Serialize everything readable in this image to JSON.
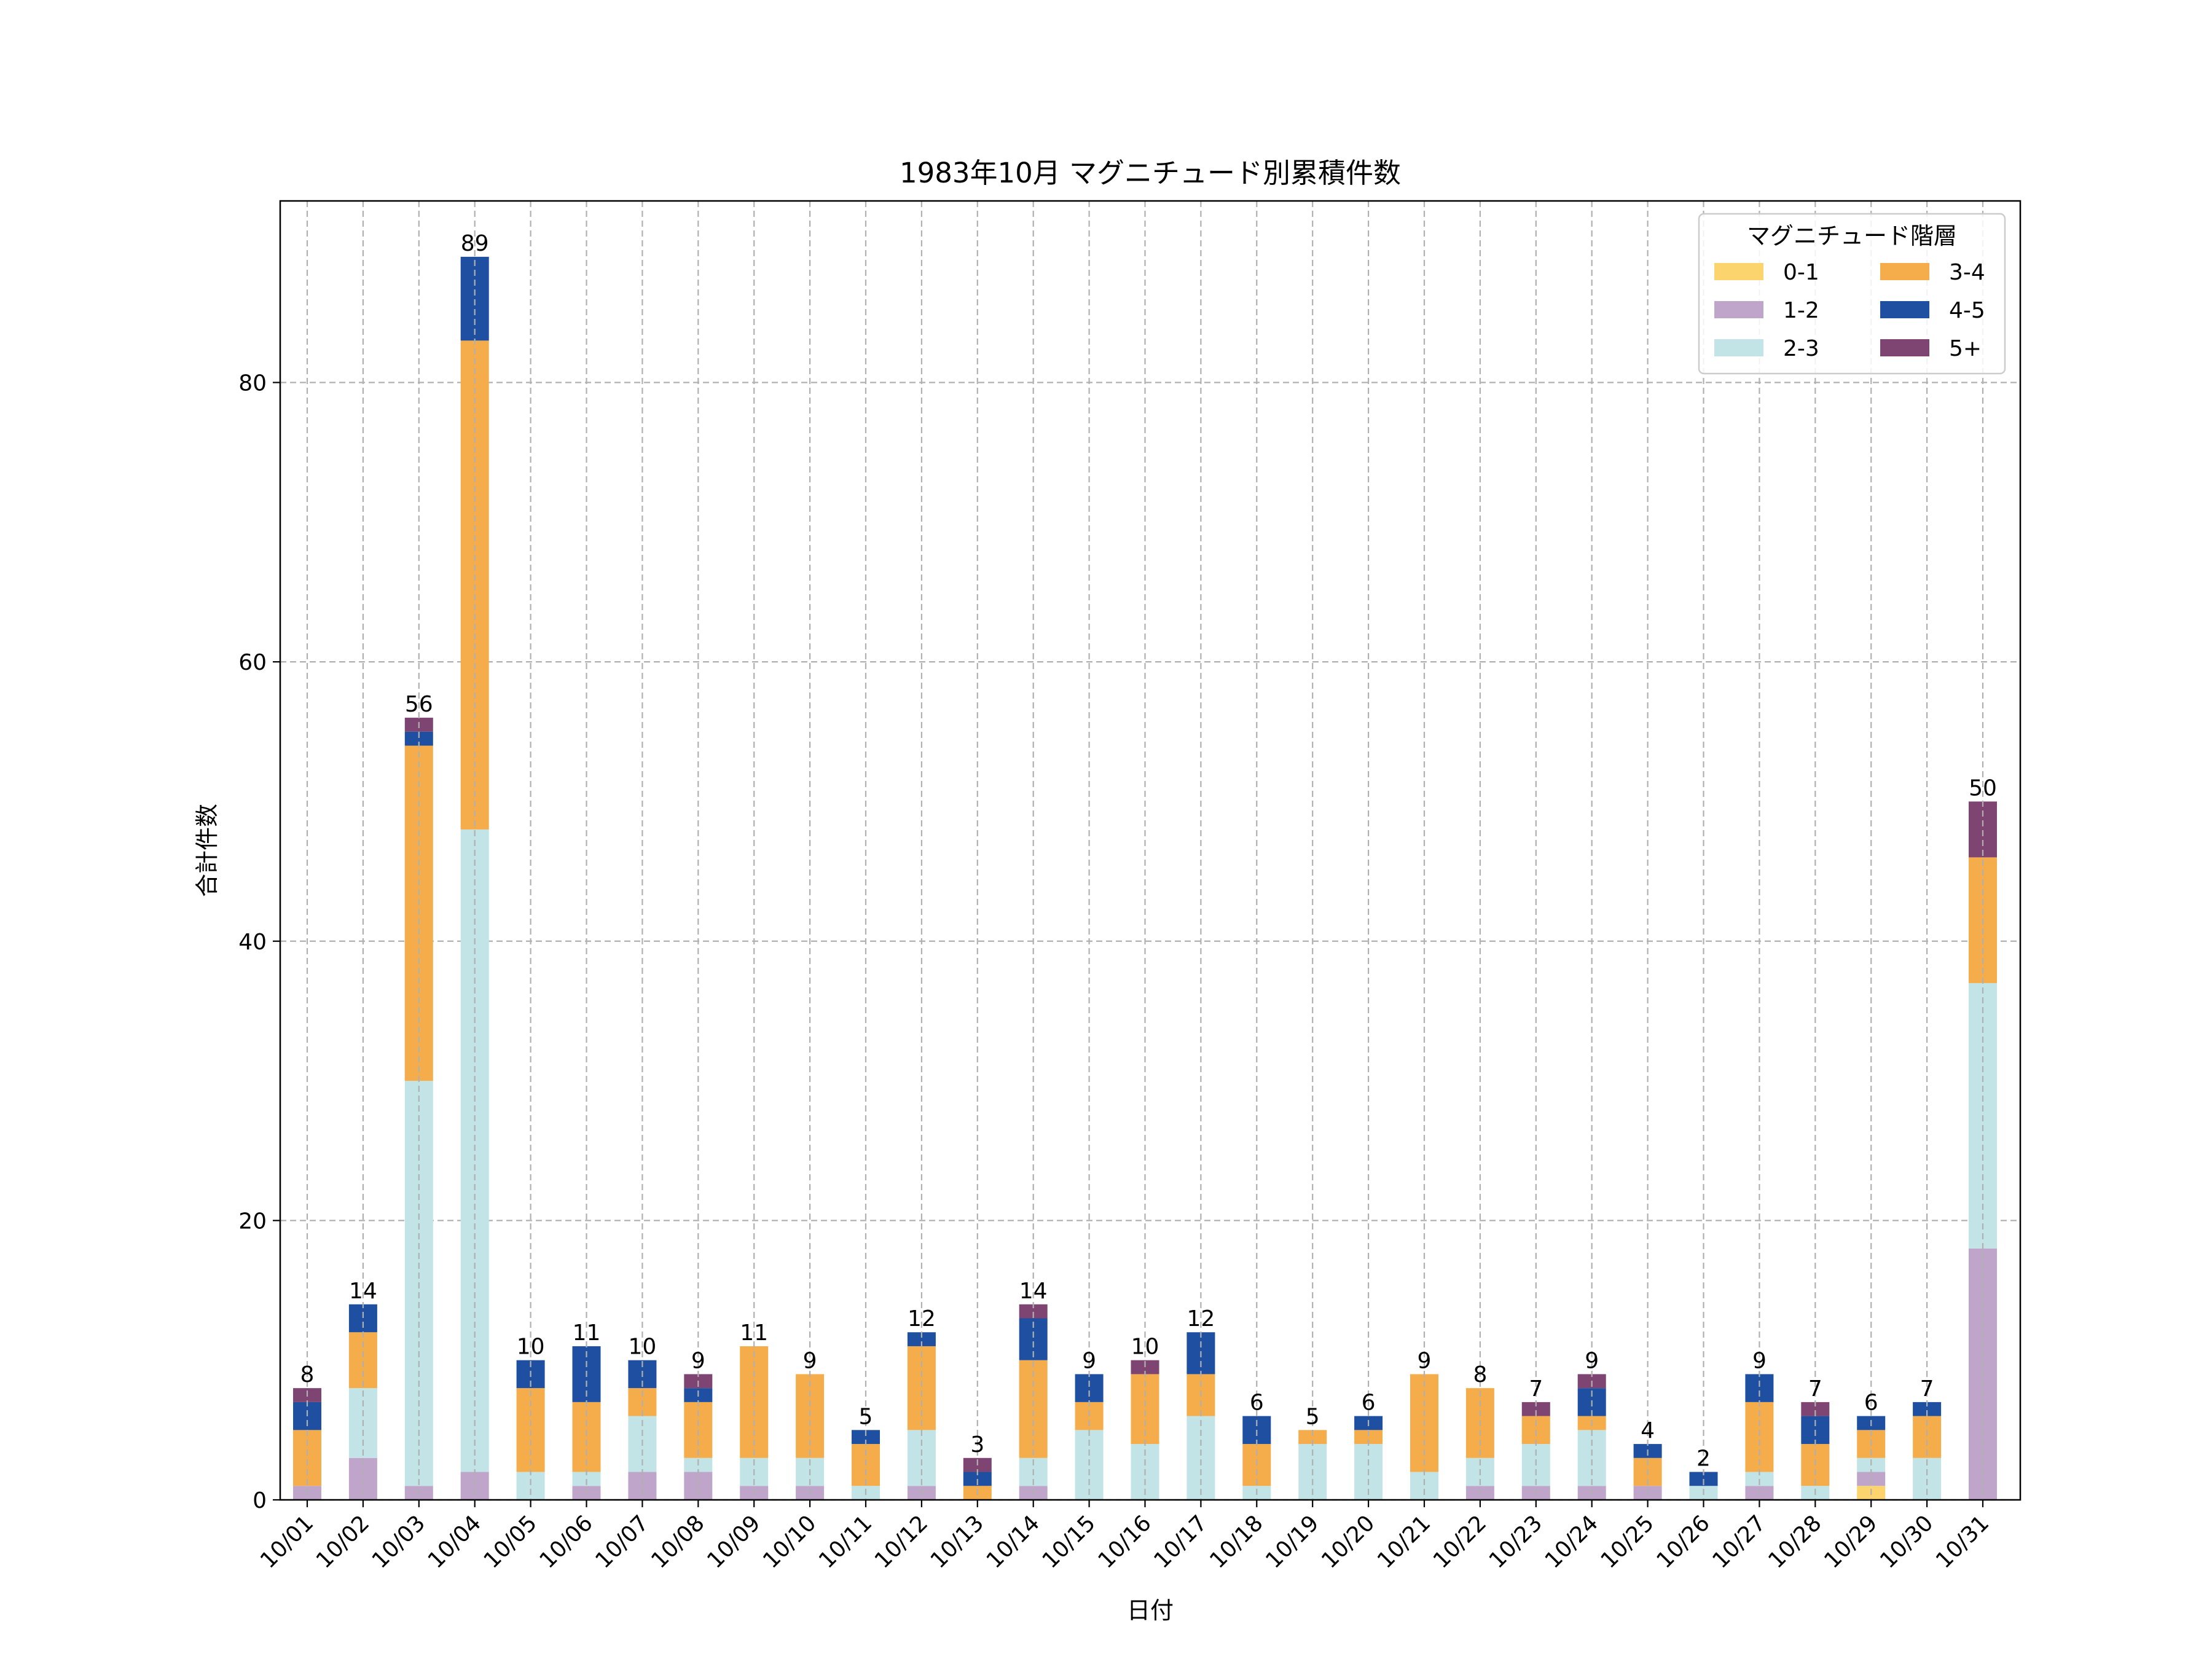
{
  "chart_data": {
    "type": "bar",
    "stacked": true,
    "title": "1983年10月 マグニチュード別累積件数",
    "xlabel": "日付",
    "ylabel": "合計件数",
    "ylim": [
      0,
      93
    ],
    "yticks": [
      0,
      20,
      40,
      60,
      80
    ],
    "grid": true,
    "legend": {
      "title": "マグニチュード階層",
      "position": "top-right",
      "columns": 2
    },
    "categories": [
      "10/01",
      "10/02",
      "10/03",
      "10/04",
      "10/05",
      "10/06",
      "10/07",
      "10/08",
      "10/09",
      "10/10",
      "10/11",
      "10/12",
      "10/13",
      "10/14",
      "10/15",
      "10/16",
      "10/17",
      "10/18",
      "10/19",
      "10/20",
      "10/21",
      "10/22",
      "10/23",
      "10/24",
      "10/25",
      "10/26",
      "10/27",
      "10/28",
      "10/29",
      "10/30",
      "10/31"
    ],
    "totals": [
      8,
      14,
      56,
      89,
      10,
      11,
      10,
      9,
      11,
      9,
      5,
      12,
      3,
      14,
      9,
      10,
      12,
      6,
      5,
      6,
      9,
      8,
      7,
      9,
      4,
      2,
      9,
      7,
      6,
      7,
      50
    ],
    "series": [
      {
        "name": "0-1",
        "color": "#FBD46D",
        "values": [
          0,
          0,
          0,
          0,
          0,
          0,
          0,
          0,
          0,
          0,
          0,
          0,
          0,
          0,
          0,
          0,
          0,
          0,
          0,
          0,
          0,
          0,
          0,
          0,
          0,
          0,
          0,
          0,
          1,
          0,
          0
        ]
      },
      {
        "name": "1-2",
        "color": "#C0A5CB",
        "values": [
          1,
          3,
          1,
          2,
          0,
          1,
          2,
          2,
          1,
          1,
          0,
          1,
          0,
          1,
          0,
          0,
          0,
          0,
          0,
          0,
          0,
          1,
          1,
          1,
          1,
          0,
          1,
          0,
          1,
          0,
          18
        ]
      },
      {
        "name": "2-3",
        "color": "#C3E4E6",
        "values": [
          0,
          5,
          29,
          46,
          2,
          1,
          4,
          1,
          2,
          2,
          1,
          4,
          0,
          2,
          5,
          4,
          6,
          1,
          4,
          4,
          2,
          2,
          3,
          4,
          0,
          1,
          1,
          1,
          1,
          3,
          19
        ]
      },
      {
        "name": "3-4",
        "color": "#F5AD4C",
        "values": [
          4,
          4,
          24,
          35,
          6,
          5,
          2,
          4,
          8,
          6,
          3,
          6,
          1,
          7,
          2,
          5,
          3,
          3,
          1,
          1,
          7,
          5,
          2,
          1,
          2,
          0,
          5,
          3,
          2,
          3,
          9
        ]
      },
      {
        "name": "4-5",
        "color": "#1E4FA0",
        "values": [
          2,
          2,
          1,
          6,
          2,
          4,
          2,
          1,
          0,
          0,
          1,
          1,
          1,
          3,
          2,
          0,
          3,
          2,
          0,
          1,
          0,
          0,
          0,
          2,
          1,
          1,
          2,
          2,
          1,
          1,
          0
        ]
      },
      {
        "name": "5+",
        "color": "#7E4472",
        "values": [
          1,
          0,
          1,
          0,
          0,
          0,
          0,
          1,
          0,
          0,
          0,
          0,
          1,
          1,
          0,
          1,
          0,
          0,
          0,
          0,
          0,
          0,
          1,
          1,
          0,
          0,
          0,
          1,
          0,
          0,
          4
        ]
      }
    ]
  }
}
